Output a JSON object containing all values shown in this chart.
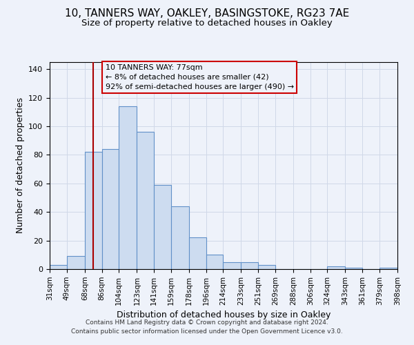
{
  "title": "10, TANNERS WAY, OAKLEY, BASINGSTOKE, RG23 7AE",
  "subtitle": "Size of property relative to detached houses in Oakley",
  "xlabel": "Distribution of detached houses by size in Oakley",
  "ylabel": "Number of detached properties",
  "bin_edges": [
    31,
    49,
    68,
    86,
    104,
    123,
    141,
    159,
    178,
    196,
    214,
    233,
    251,
    269,
    288,
    306,
    324,
    343,
    361,
    379,
    398
  ],
  "bar_heights": [
    3,
    9,
    82,
    84,
    114,
    96,
    59,
    44,
    22,
    10,
    5,
    5,
    3,
    0,
    0,
    0,
    2,
    1,
    0,
    1
  ],
  "bar_color": "#cddcf0",
  "bar_edge_color": "#6090c8",
  "grid_color": "#d0d8e8",
  "bg_color": "#eef2fa",
  "vline_x": 77,
  "vline_color": "#aa0000",
  "annotation_line1": "10 TANNERS WAY: 77sqm",
  "annotation_line2": "← 8% of detached houses are smaller (42)",
  "annotation_line3": "92% of semi-detached houses are larger (490) →",
  "annotation_box_color": "#cc0000",
  "footer1": "Contains HM Land Registry data © Crown copyright and database right 2024.",
  "footer2": "Contains public sector information licensed under the Open Government Licence v3.0.",
  "ylim": [
    0,
    145
  ],
  "title_fontsize": 11,
  "subtitle_fontsize": 9.5,
  "ylabel_fontsize": 9,
  "xlabel_fontsize": 9,
  "tick_fontsize": 7.5,
  "annotation_fontsize": 8,
  "footer_fontsize": 6.5
}
